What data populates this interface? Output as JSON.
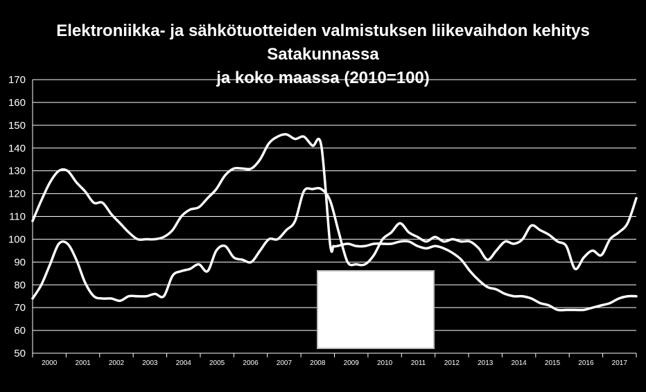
{
  "chart_data": {
    "type": "line",
    "title_lines": [
      "Elektroniikka- ja sähkötuotteiden valmistuksen liikevaihdon kehitys Satakunnassa",
      "ja koko maassa (2010=100)"
    ],
    "xlabel": "",
    "ylabel": "",
    "ylim": [
      50,
      170
    ],
    "yticks": [
      "50",
      "60",
      "70",
      "80",
      "90",
      "100",
      "110",
      "120",
      "130",
      "140",
      "150",
      "160",
      "170"
    ],
    "xlim": [
      2000,
      2017.25
    ],
    "xticks": [
      "2000",
      "2001",
      "2002",
      "2003",
      "2004",
      "2005",
      "2006",
      "2007",
      "2008",
      "2009",
      "2010",
      "2011",
      "2012",
      "2013",
      "2014",
      "2015",
      "2016",
      "2017"
    ],
    "grid": "horizontal",
    "line_color": "#ffffff",
    "legend_box_color": "#ffffff",
    "series": [
      {
        "x": [
          2000.0,
          2000.25,
          2000.5,
          2000.75,
          2001.0,
          2001.25,
          2001.5,
          2001.75,
          2002.0,
          2002.25,
          2002.5,
          2002.75,
          2003.0,
          2003.25,
          2003.5,
          2003.75,
          2004.0,
          2004.25,
          2004.5,
          2004.75,
          2005.0,
          2005.25,
          2005.5,
          2005.75,
          2006.0,
          2006.25,
          2006.5,
          2006.75,
          2007.0,
          2007.25,
          2007.5,
          2007.75,
          2008.0,
          2008.25,
          2008.5,
          2008.6,
          2008.7,
          2009.0,
          2009.25,
          2009.5,
          2009.75,
          2010.0,
          2010.25,
          2010.5,
          2010.75,
          2011.0,
          2011.25,
          2011.5,
          2011.75,
          2012.0,
          2012.25,
          2012.5,
          2012.75,
          2013.0,
          2013.25,
          2013.5,
          2013.75,
          2014.0,
          2014.25,
          2014.5,
          2014.75,
          2015.0,
          2015.25,
          2015.5,
          2015.75,
          2016.0,
          2016.25,
          2016.5,
          2016.75,
          2017.0,
          2017.25
        ],
        "values": [
          108,
          117,
          125,
          130,
          130,
          125,
          121,
          116,
          116,
          111,
          107,
          103,
          100,
          100,
          100,
          101,
          104,
          110,
          113,
          114,
          118,
          122,
          128,
          131,
          131,
          131,
          135,
          142,
          145,
          146,
          144,
          145,
          141,
          141,
          98,
          97,
          97,
          98,
          97,
          97,
          98,
          98,
          98,
          99,
          99,
          97,
          96,
          97,
          96,
          94,
          91,
          86,
          82,
          79,
          78,
          76,
          75,
          75,
          74,
          72,
          71,
          69,
          69,
          69,
          69,
          70,
          71,
          72,
          74,
          75,
          75
        ]
      },
      {
        "x": [
          2000.0,
          2000.25,
          2000.5,
          2000.75,
          2001.0,
          2001.25,
          2001.5,
          2001.75,
          2002.0,
          2002.25,
          2002.5,
          2002.75,
          2003.0,
          2003.25,
          2003.5,
          2003.75,
          2004.0,
          2004.25,
          2004.5,
          2004.75,
          2005.0,
          2005.25,
          2005.5,
          2005.75,
          2006.0,
          2006.25,
          2006.5,
          2006.75,
          2007.0,
          2007.25,
          2007.5,
          2007.75,
          2008.0,
          2008.25,
          2008.5,
          2008.75,
          2009.0,
          2009.25,
          2009.5,
          2009.75,
          2010.0,
          2010.25,
          2010.5,
          2010.75,
          2011.0,
          2011.25,
          2011.5,
          2011.75,
          2012.0,
          2012.25,
          2012.5,
          2012.75,
          2013.0,
          2013.25,
          2013.5,
          2013.75,
          2014.0,
          2014.25,
          2014.5,
          2014.75,
          2015.0,
          2015.25,
          2015.5,
          2015.75,
          2016.0,
          2016.25,
          2016.5,
          2016.75,
          2017.0,
          2017.25
        ],
        "values": [
          74,
          80,
          89,
          98,
          98,
          91,
          81,
          75,
          74,
          74,
          73,
          75,
          75,
          75,
          76,
          75,
          84,
          86,
          87,
          89,
          86,
          95,
          97,
          92,
          91,
          90,
          95,
          100,
          100,
          104,
          108,
          121,
          122,
          122,
          117,
          103,
          90,
          89,
          89,
          93,
          100,
          103,
          107,
          103,
          101,
          99,
          101,
          99,
          100,
          99,
          99,
          96,
          91,
          95,
          99,
          98,
          100,
          106,
          104,
          102,
          99,
          97,
          87,
          92,
          95,
          93,
          100,
          103,
          107,
          118
        ]
      }
    ]
  }
}
